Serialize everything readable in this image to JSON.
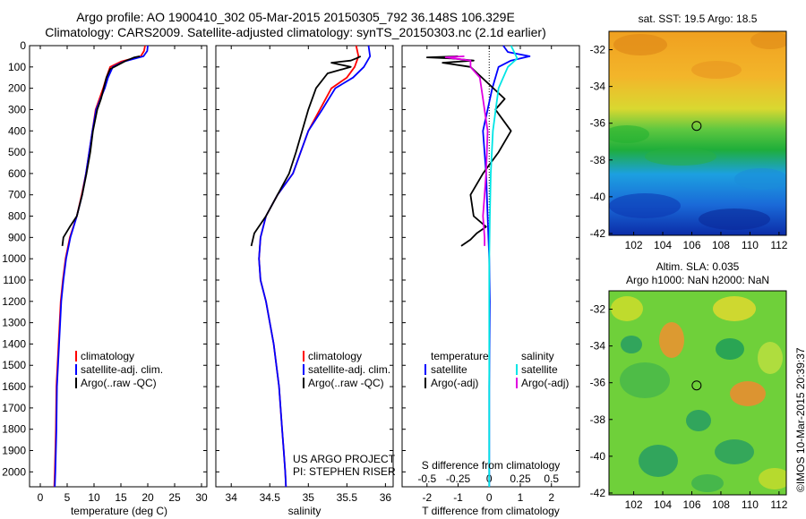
{
  "header": {
    "line1": "Argo profile: AO 1900410_302 05-Mar-2015 20150305_792 36.148S 106.329E",
    "line2": "Climatology: CARS2009. Satellite-adjusted climatology: synTS_20150303.nc (2.1d earlier)"
  },
  "colors": {
    "climatology": "#ff0000",
    "satellite": "#0000ff",
    "argo": "#000000",
    "sal_satellite": "#00e5e5",
    "sal_argo": "#e000e0"
  },
  "depth_axis": {
    "ticks": [
      0,
      100,
      200,
      300,
      400,
      500,
      600,
      700,
      800,
      900,
      1000,
      1100,
      1200,
      1300,
      1400,
      1500,
      1600,
      1700,
      1800,
      1900,
      2000
    ],
    "range": [
      0,
      2070
    ],
    "inverted": true
  },
  "chart_data": [
    {
      "type": "line",
      "id": "temperature",
      "xlabel": "temperature (deg C)",
      "xticks": [
        0,
        5,
        10,
        15,
        20,
        25,
        30
      ],
      "xlim": [
        -2,
        31
      ],
      "legend": [
        "climatology",
        "satellite-adj. clim.",
        "Argo(..raw -QC)"
      ],
      "series": [
        {
          "name": "climatology",
          "color": "#ff0000",
          "x": [
            19.5,
            19.3,
            18.7,
            15.0,
            13.0,
            12.3,
            11.7,
            11.0,
            10.3,
            9.7,
            9.1,
            8.5,
            7.7,
            6.8,
            5.5,
            4.7,
            4.2,
            3.8,
            3.4,
            3.0,
            2.9,
            2.8,
            2.7,
            2.6
          ],
          "y": [
            0,
            25,
            50,
            75,
            100,
            150,
            200,
            250,
            300,
            400,
            500,
            600,
            700,
            800,
            900,
            1000,
            1100,
            1200,
            1400,
            1600,
            1800,
            1900,
            2000,
            2070
          ]
        },
        {
          "name": "satellite-adj. clim.",
          "color": "#0000ff",
          "x": [
            20.0,
            19.9,
            19.2,
            15.5,
            13.5,
            12.6,
            12.0,
            11.2,
            10.4,
            9.7,
            9.1,
            8.5,
            7.8,
            6.8,
            5.6,
            4.8,
            4.3,
            3.9,
            3.5,
            3.1,
            3.0,
            2.9,
            2.8,
            2.7
          ],
          "y": [
            0,
            25,
            50,
            75,
            100,
            150,
            200,
            250,
            300,
            400,
            500,
            600,
            700,
            800,
            900,
            1000,
            1100,
            1200,
            1400,
            1600,
            1800,
            1900,
            2000,
            2070
          ]
        },
        {
          "name": "Argo(..raw -QC)",
          "color": "#000000",
          "x": [
            18.5,
            17.5,
            17.0,
            16.0,
            14.5,
            13.0,
            12.3,
            11.8,
            11.3,
            10.6,
            9.8,
            9.3,
            8.6,
            7.8,
            6.8,
            5.5,
            4.3,
            4.1
          ],
          "y": [
            50,
            55,
            60,
            70,
            90,
            110,
            150,
            200,
            250,
            300,
            400,
            500,
            600,
            700,
            800,
            850,
            900,
            940
          ]
        }
      ]
    },
    {
      "type": "line",
      "id": "salinity",
      "xlabel": "salinity",
      "xticks": [
        34,
        34.5,
        35,
        35.5,
        36
      ],
      "xlim": [
        33.8,
        36.1
      ],
      "legend": [
        "climatology",
        "satellite-adj. clim.",
        "Argo(..raw -QC)"
      ],
      "annotation": [
        "US ARGO PROJECT",
        "PI: STEPHEN RISER"
      ],
      "series": [
        {
          "name": "climatology",
          "color": "#ff0000",
          "x": [
            35.62,
            35.65,
            35.6,
            35.5,
            35.3,
            35.15,
            35.0,
            34.9,
            34.8,
            34.6,
            34.45,
            34.38,
            34.36,
            34.38,
            34.45,
            34.55,
            34.62,
            34.66,
            34.68,
            34.7,
            34.71
          ],
          "y": [
            0,
            50,
            100,
            150,
            200,
            300,
            400,
            500,
            600,
            700,
            800,
            900,
            1000,
            1100,
            1200,
            1400,
            1600,
            1800,
            1900,
            2000,
            2070
          ]
        },
        {
          "name": "satellite-adj. clim.",
          "color": "#0000ff",
          "x": [
            35.78,
            35.8,
            35.72,
            35.58,
            35.35,
            35.18,
            35.0,
            34.9,
            34.8,
            34.6,
            34.45,
            34.38,
            34.36,
            34.38,
            34.45,
            34.55,
            34.62,
            34.66,
            34.68,
            34.7,
            34.71
          ],
          "y": [
            0,
            50,
            100,
            150,
            200,
            300,
            400,
            500,
            600,
            700,
            800,
            900,
            1000,
            1100,
            1200,
            1400,
            1600,
            1800,
            1900,
            2000,
            2070
          ]
        },
        {
          "name": "Argo(..raw -QC)",
          "color": "#000000",
          "x": [
            35.68,
            35.62,
            35.55,
            35.3,
            35.55,
            35.25,
            35.1,
            35.0,
            34.92,
            34.84,
            34.75,
            34.6,
            34.45,
            34.3,
            34.26
          ],
          "y": [
            50,
            60,
            70,
            80,
            100,
            130,
            200,
            300,
            400,
            500,
            600,
            700,
            800,
            880,
            940
          ]
        }
      ]
    },
    {
      "type": "line",
      "id": "difference",
      "xlabel": "T difference from climatology",
      "xlabel_top": "S difference from climatology",
      "xticks": [
        -2,
        -1,
        0,
        1,
        2
      ],
      "xticks_top": [
        "-0.5",
        "-0.25",
        "0",
        "0.25",
        "0.5"
      ],
      "xlim": [
        -2.8,
        2.9
      ],
      "legend_temperature": {
        "title": "temperature",
        "items": [
          "satellite",
          "Argo(-adj)"
        ]
      },
      "legend_salinity": {
        "title": "salinity",
        "items": [
          "satellite",
          "Argo(-adj)"
        ]
      },
      "series": [
        {
          "name": "temperature satellite",
          "color": "#0000ff",
          "x": [
            0.45,
            0.6,
            1.3,
            0.7,
            0.3,
            0.1,
            -0.2,
            -0.1,
            -0.05,
            0.0,
            0.02,
            0.0,
            0.0
          ],
          "y": [
            0,
            30,
            50,
            70,
            100,
            200,
            400,
            600,
            800,
            1000,
            1200,
            1600,
            2070
          ]
        },
        {
          "name": "temperature Argo(-adj)",
          "color": "#000000",
          "x": [
            -1.0,
            -2.0,
            -1.2,
            -0.5,
            -1.5,
            -0.6,
            0.5,
            0.2,
            0.7,
            0.3,
            -0.2,
            -0.6,
            -0.5,
            -0.1,
            -0.4,
            -0.6,
            -0.9
          ],
          "y": [
            50,
            55,
            60,
            70,
            80,
            100,
            250,
            300,
            400,
            500,
            600,
            700,
            800,
            850,
            880,
            910,
            940
          ]
        },
        {
          "name": "salinity satellite",
          "color": "#00e5e5",
          "x": [
            0.7,
            0.8,
            0.9,
            0.75,
            0.6,
            0.3,
            0.12,
            0.05,
            0.02,
            0.0,
            0.0,
            0.0
          ],
          "y": [
            0,
            30,
            60,
            80,
            100,
            200,
            400,
            600,
            800,
            1000,
            1600,
            2070
          ]
        },
        {
          "name": "salinity Argo(-adj)",
          "color": "#e000e0",
          "x": [
            -0.8,
            -1.4,
            -0.6,
            -0.6,
            -0.3,
            -0.2,
            -0.05,
            -0.1,
            -0.15,
            -0.2,
            -0.15,
            -0.15
          ],
          "y": [
            50,
            55,
            70,
            100,
            150,
            250,
            400,
            600,
            700,
            800,
            900,
            940
          ]
        }
      ]
    }
  ],
  "maps": {
    "sst": {
      "title": "sat. SST: 19.5 Argo: 18.5",
      "lat_ticks": [
        "-32",
        "-34",
        "-36",
        "-38",
        "-40",
        "-42"
      ],
      "lon_ticks": [
        "102",
        "104",
        "106",
        "108",
        "110",
        "112"
      ],
      "marker": {
        "lon": 106.329,
        "lat": -36.148
      }
    },
    "sla": {
      "title_line1": "Altim. SLA: 0.035",
      "title_line2": "Argo h1000: NaN h2000: NaN",
      "lat_ticks": [
        "-32",
        "-34",
        "-36",
        "-38",
        "-40",
        "-42"
      ],
      "lon_ticks": [
        "102",
        "104",
        "106",
        "108",
        "110",
        "112"
      ],
      "marker": {
        "lon": 106.329,
        "lat": -36.148
      }
    }
  },
  "footer": {
    "credit": "©IMOS 10-Mar-2015 20:39:37"
  }
}
